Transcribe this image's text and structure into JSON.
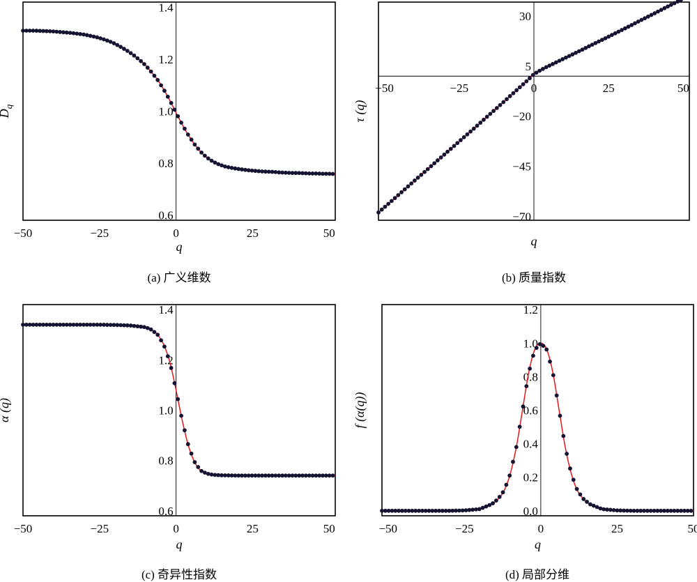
{
  "chart_data": [
    {
      "type": "line",
      "id": "a",
      "caption": "(a) 广义维数",
      "xlabel": "q",
      "ylabel_main": "D",
      "ylabel_sub": "q",
      "xlim": [
        -50,
        52
      ],
      "ylim": [
        0.58,
        1.42
      ],
      "xticks": [
        -50,
        -25,
        0,
        25,
        50
      ],
      "xtick_labels": [
        "−50",
        "−25",
        "0",
        "25",
        "50"
      ],
      "yticks": [
        0.6,
        0.8,
        1.0,
        1.2,
        1.4
      ],
      "ytick_labels": [
        "0.6",
        "0.8",
        "1.0",
        "1.2",
        "1.4"
      ],
      "yaxis_at_zero": true,
      "xaxis_at_zero": false,
      "series": [
        {
          "x": [
            -50,
            -48,
            -46,
            -44,
            -42,
            -40,
            -38,
            -36,
            -34,
            -32,
            -30,
            -28,
            -26,
            -24,
            -22,
            -20,
            -18,
            -16,
            -14,
            -12,
            -10,
            -8,
            -6,
            -4,
            -2,
            0,
            2,
            4,
            6,
            8,
            10,
            12,
            14,
            16,
            18,
            20,
            22,
            24,
            26,
            28,
            30,
            32,
            34,
            36,
            38,
            40,
            42,
            44,
            46,
            48,
            50,
            52
          ],
          "y": [
            1.31,
            1.31,
            1.31,
            1.309,
            1.308,
            1.307,
            1.305,
            1.303,
            1.301,
            1.298,
            1.295,
            1.29,
            1.285,
            1.278,
            1.27,
            1.26,
            1.247,
            1.233,
            1.217,
            1.198,
            1.177,
            1.15,
            1.12,
            1.083,
            1.041,
            0.994,
            0.949,
            0.908,
            0.873,
            0.844,
            0.822,
            0.806,
            0.795,
            0.787,
            0.782,
            0.778,
            0.775,
            0.772,
            0.77,
            0.768,
            0.767,
            0.766,
            0.764,
            0.763,
            0.762,
            0.762,
            0.761,
            0.76,
            0.76,
            0.759,
            0.759,
            0.758
          ]
        }
      ]
    },
    {
      "type": "line",
      "id": "b",
      "caption": "(b) 质量指数",
      "xlabel": "q",
      "ylabel_main": "τ (q)",
      "ylabel_sub": "",
      "xlim": [
        -52,
        52
      ],
      "ylim": [
        -72,
        37
      ],
      "xticks": [
        -50,
        -25,
        0,
        25,
        50
      ],
      "xtick_labels": [
        "−50",
        "−25",
        "0",
        "25",
        "50"
      ],
      "yticks": [
        -70,
        -45,
        -20,
        5,
        30
      ],
      "ytick_labels": [
        "−70",
        "−45",
        "−20",
        "5",
        "30"
      ],
      "yaxis_at_zero": true,
      "xaxis_at_zero": true,
      "series": [
        {
          "x": [
            -52,
            -48,
            -44,
            -40,
            -36,
            -32,
            -28,
            -24,
            -20,
            -16,
            -12,
            -8,
            -4,
            -2,
            0,
            2,
            4,
            8,
            12,
            16,
            20,
            24,
            28,
            32,
            36,
            40,
            44,
            48,
            52
          ],
          "y": [
            -68.1,
            -62.9,
            -57.6,
            -52.3,
            -47.1,
            -41.8,
            -36.6,
            -31.3,
            -26.1,
            -20.7,
            -15.4,
            -10.0,
            -4.6,
            -1.9,
            1.0,
            2.8,
            4.4,
            7.3,
            10.2,
            13.1,
            16.1,
            19.0,
            22.0,
            25.0,
            28.1,
            31.1,
            34.2,
            37.2,
            40.3
          ]
        }
      ]
    },
    {
      "type": "line",
      "id": "c",
      "caption": "(c) 奇异性指数",
      "xlabel": "q",
      "ylabel_main": "α (q)",
      "ylabel_sub": "",
      "xlim": [
        -50,
        52
      ],
      "ylim": [
        0.58,
        1.42
      ],
      "xticks": [
        -50,
        -25,
        0,
        25,
        50
      ],
      "xtick_labels": [
        "−50",
        "−25",
        "0",
        "25",
        "50"
      ],
      "yticks": [
        0.6,
        0.8,
        1.0,
        1.2,
        1.4
      ],
      "ytick_labels": [
        "0.6",
        "0.8",
        "1.0",
        "1.2",
        "1.4"
      ],
      "yaxis_at_zero": true,
      "xaxis_at_zero": false,
      "series": [
        {
          "x": [
            -50,
            -45,
            -40,
            -35,
            -30,
            -25,
            -20,
            -15,
            -10,
            -8,
            -6,
            -4,
            -2,
            0,
            2,
            4,
            6,
            8,
            10,
            12,
            15,
            20,
            25,
            30,
            35,
            40,
            45,
            50,
            52
          ],
          "y": [
            1.34,
            1.34,
            1.34,
            1.34,
            1.34,
            1.34,
            1.339,
            1.337,
            1.33,
            1.32,
            1.3,
            1.26,
            1.19,
            1.08,
            0.96,
            0.86,
            0.795,
            0.76,
            0.748,
            0.743,
            0.741,
            0.74,
            0.74,
            0.74,
            0.74,
            0.74,
            0.74,
            0.74,
            0.74
          ]
        }
      ]
    },
    {
      "type": "line",
      "id": "d",
      "caption": "(d) 局部分维",
      "xlabel": "q",
      "ylabel_main": "f (α(q))",
      "ylabel_sub": "",
      "xlim": [
        -52,
        50
      ],
      "ylim": [
        -0.03,
        1.23
      ],
      "xticks": [
        -50,
        -25,
        0,
        25,
        50
      ],
      "xtick_labels": [
        "−50",
        "−25",
        "0",
        "25",
        "50"
      ],
      "yticks": [
        0.0,
        0.2,
        0.4,
        0.6,
        0.8,
        1.0,
        1.2
      ],
      "ytick_labels": [
        "0.0",
        "0.2",
        "0.4",
        "0.6",
        "0.8",
        "1.0",
        "1.2"
      ],
      "yaxis_at_zero": true,
      "xaxis_at_zero": false,
      "series": [
        {
          "x": [
            -52,
            -40,
            -30,
            -25,
            -20,
            -16,
            -14,
            -12,
            -10,
            -8,
            -6,
            -4,
            -2,
            0,
            2,
            4,
            6,
            8,
            10,
            12,
            14,
            16,
            20,
            25,
            30,
            40,
            50
          ],
          "y": [
            0.0,
            0.0,
            0.0,
            0.002,
            0.01,
            0.04,
            0.07,
            0.12,
            0.22,
            0.38,
            0.6,
            0.82,
            0.96,
            1.0,
            0.96,
            0.82,
            0.6,
            0.38,
            0.22,
            0.12,
            0.07,
            0.04,
            0.01,
            0.002,
            0.0,
            0.0,
            0.0
          ]
        }
      ]
    }
  ]
}
